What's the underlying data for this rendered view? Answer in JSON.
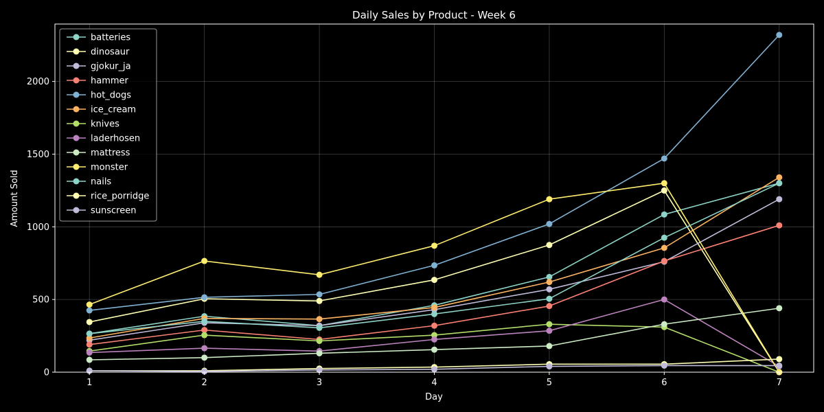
{
  "chart_data": {
    "type": "line",
    "title": "Daily Sales by Product - Week 6",
    "xlabel": "Day",
    "ylabel": "Amount Sold",
    "x": [
      1,
      2,
      3,
      4,
      5,
      6,
      7
    ],
    "xlim": [
      0.7,
      7.3
    ],
    "ylim": [
      0,
      2395
    ],
    "yticks": [
      0,
      500,
      1000,
      1500,
      2000
    ],
    "grid": true,
    "legend_position": "top-left",
    "series": [
      {
        "name": "batteries",
        "color": "#8dd3c7",
        "values": [
          265,
          385,
          320,
          460,
          655,
          1085,
          1300
        ]
      },
      {
        "name": "dinosaur",
        "color": "#feffb3",
        "values": [
          345,
          505,
          490,
          635,
          875,
          1250,
          0
        ]
      },
      {
        "name": "gjokur_ja",
        "color": "#bfbbd9",
        "values": [
          220,
          340,
          320,
          430,
          570,
          760,
          1190
        ]
      },
      {
        "name": "hammer",
        "color": "#fa8174",
        "values": [
          190,
          290,
          225,
          320,
          455,
          765,
          1010
        ]
      },
      {
        "name": "hot_dogs",
        "color": "#81b1d2",
        "values": [
          425,
          515,
          535,
          735,
          1020,
          1470,
          2320
        ]
      },
      {
        "name": "ice_cream",
        "color": "#fdb462",
        "values": [
          235,
          370,
          365,
          445,
          620,
          855,
          1340
        ]
      },
      {
        "name": "knives",
        "color": "#b3de69",
        "values": [
          145,
          255,
          215,
          255,
          330,
          310,
          0
        ]
      },
      {
        "name": "laderhosen",
        "color": "#bc82bd",
        "values": [
          135,
          165,
          145,
          225,
          285,
          500,
          40
        ]
      },
      {
        "name": "mattress",
        "color": "#ccebc4",
        "values": [
          85,
          100,
          130,
          155,
          180,
          330,
          440
        ]
      },
      {
        "name": "monster",
        "color": "#ffed6f",
        "values": [
          465,
          765,
          670,
          870,
          1190,
          1300,
          0
        ]
      },
      {
        "name": "nails",
        "color": "#8dd3c7",
        "values": [
          265,
          350,
          305,
          400,
          505,
          925,
          1300
        ]
      },
      {
        "name": "rice_porridge",
        "color": "#feffb3",
        "values": [
          10,
          10,
          25,
          35,
          55,
          55,
          90
        ]
      },
      {
        "name": "sunscreen",
        "color": "#bfbbd9",
        "values": [
          10,
          5,
          15,
          20,
          40,
          45,
          45
        ]
      }
    ]
  }
}
